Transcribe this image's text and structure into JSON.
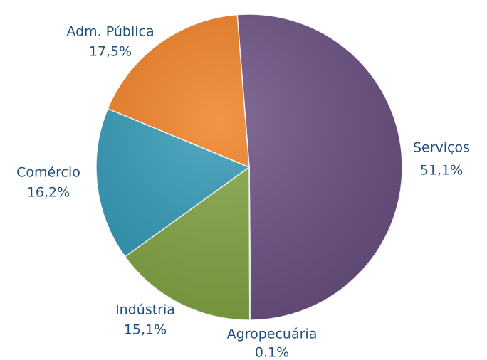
{
  "chart_data": {
    "type": "pie",
    "categories": [
      "Serviços",
      "Agropecuária",
      "Indústria",
      "Comércio",
      "Adm. Pública"
    ],
    "values": [
      51.1,
      0.1,
      15.1,
      16.2,
      17.5
    ],
    "value_labels": [
      "51,1%",
      "0.1%",
      "15,1%",
      "16,2%",
      "17,5%"
    ],
    "colors": [
      "#6a4f82",
      "#b83a2e",
      "#80a340",
      "#2f98b5",
      "#f07d1f"
    ]
  }
}
